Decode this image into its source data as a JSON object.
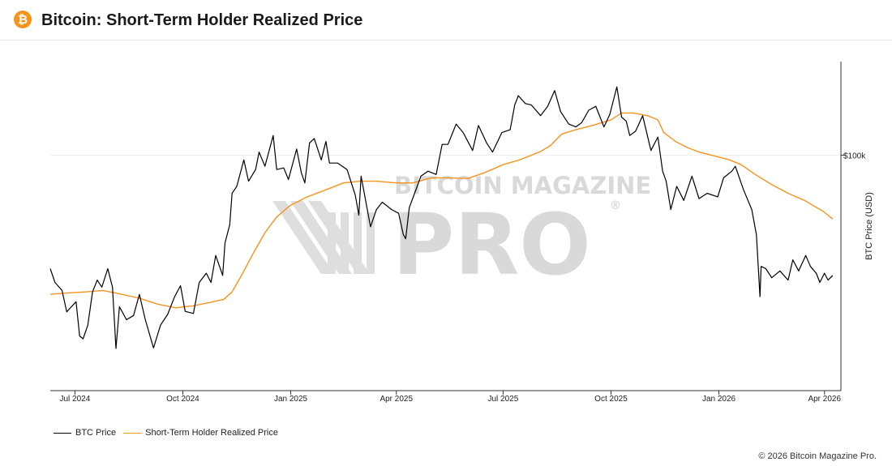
{
  "header": {
    "title": "Bitcoin: Short-Term Holder Realized Price",
    "logo_glyph": "₿"
  },
  "watermark": {
    "line1": "BITCOIN MAGAZINE",
    "line2": "PRO",
    "registered": "®"
  },
  "footer": {
    "copyright": "© 2026 Bitcoin Magazine Pro."
  },
  "colors": {
    "btc_price": "#000000",
    "sth_realized_price": "#f7931a",
    "logo": "#f7931a"
  },
  "chart_data": {
    "type": "line",
    "title": "Bitcoin: Short-Term Holder Realized Price",
    "xlabel": "",
    "ylabel": "BTC Price (USD)",
    "y_scale": "log",
    "ylim": [
      47000,
      135000
    ],
    "xlim": [
      "2024-06-10",
      "2026-04-15"
    ],
    "grid": {
      "horizontal": true,
      "vertical": false
    },
    "legend_position": "bottom-left",
    "x_ticks": [
      {
        "date": "2024-07-01",
        "label": "Jul 2024"
      },
      {
        "date": "2024-10-01",
        "label": "Oct 2024"
      },
      {
        "date": "2025-01-01",
        "label": "Jan 2025"
      },
      {
        "date": "2025-04-01",
        "label": "Apr 2025"
      },
      {
        "date": "2025-07-01",
        "label": "Jul 2025"
      },
      {
        "date": "2025-10-01",
        "label": "Oct 2025"
      },
      {
        "date": "2026-01-01",
        "label": "Jan 2026"
      },
      {
        "date": "2026-04-01",
        "label": "Apr 2026"
      }
    ],
    "y_ticks": [
      {
        "value": 100000,
        "label": "$100k"
      }
    ],
    "series": [
      {
        "name": "BTC Price",
        "color": "#000000",
        "points": [
          [
            "2024-06-10",
            69500
          ],
          [
            "2024-06-14",
            66500
          ],
          [
            "2024-06-20",
            64800
          ],
          [
            "2024-06-24",
            60500
          ],
          [
            "2024-06-28",
            61500
          ],
          [
            "2024-07-02",
            62500
          ],
          [
            "2024-07-05",
            56000
          ],
          [
            "2024-07-08",
            55500
          ],
          [
            "2024-07-12",
            58000
          ],
          [
            "2024-07-16",
            64500
          ],
          [
            "2024-07-20",
            67000
          ],
          [
            "2024-07-24",
            65500
          ],
          [
            "2024-07-29",
            69500
          ],
          [
            "2024-08-02",
            65500
          ],
          [
            "2024-08-05",
            53800
          ],
          [
            "2024-08-08",
            61500
          ],
          [
            "2024-08-14",
            59000
          ],
          [
            "2024-08-20",
            59800
          ],
          [
            "2024-08-25",
            64000
          ],
          [
            "2024-08-30",
            59000
          ],
          [
            "2024-09-06",
            53900
          ],
          [
            "2024-09-12",
            58000
          ],
          [
            "2024-09-18",
            60000
          ],
          [
            "2024-09-24",
            63500
          ],
          [
            "2024-09-29",
            65800
          ],
          [
            "2024-10-03",
            60600
          ],
          [
            "2024-10-10",
            60200
          ],
          [
            "2024-10-15",
            66500
          ],
          [
            "2024-10-21",
            68500
          ],
          [
            "2024-10-25",
            66500
          ],
          [
            "2024-10-29",
            72500
          ],
          [
            "2024-11-04",
            68000
          ],
          [
            "2024-11-06",
            75500
          ],
          [
            "2024-11-10",
            80000
          ],
          [
            "2024-11-12",
            88500
          ],
          [
            "2024-11-16",
            90500
          ],
          [
            "2024-11-22",
            98500
          ],
          [
            "2024-11-26",
            92000
          ],
          [
            "2024-12-02",
            95500
          ],
          [
            "2024-12-05",
            101000
          ],
          [
            "2024-12-10",
            96500
          ],
          [
            "2024-12-17",
            106500
          ],
          [
            "2024-12-20",
            95500
          ],
          [
            "2024-12-26",
            96000
          ],
          [
            "2024-12-30",
            92500
          ],
          [
            "2025-01-06",
            102000
          ],
          [
            "2025-01-10",
            94500
          ],
          [
            "2025-01-13",
            91500
          ],
          [
            "2025-01-17",
            104000
          ],
          [
            "2025-01-21",
            105500
          ],
          [
            "2025-01-27",
            98500
          ],
          [
            "2025-01-31",
            104500
          ],
          [
            "2025-02-03",
            97500
          ],
          [
            "2025-02-10",
            97500
          ],
          [
            "2025-02-18",
            95500
          ],
          [
            "2025-02-25",
            88000
          ],
          [
            "2025-02-28",
            82500
          ],
          [
            "2025-03-02",
            93500
          ],
          [
            "2025-03-10",
            79500
          ],
          [
            "2025-03-15",
            84000
          ],
          [
            "2025-03-20",
            86000
          ],
          [
            "2025-03-28",
            84000
          ],
          [
            "2025-04-03",
            83000
          ],
          [
            "2025-04-07",
            77500
          ],
          [
            "2025-04-09",
            76500
          ],
          [
            "2025-04-12",
            84500
          ],
          [
            "2025-04-22",
            93500
          ],
          [
            "2025-04-28",
            95000
          ],
          [
            "2025-05-05",
            94000
          ],
          [
            "2025-05-10",
            103500
          ],
          [
            "2025-05-15",
            103500
          ],
          [
            "2025-05-22",
            110500
          ],
          [
            "2025-05-28",
            107500
          ],
          [
            "2025-06-05",
            101500
          ],
          [
            "2025-06-10",
            110000
          ],
          [
            "2025-06-17",
            104000
          ],
          [
            "2025-06-22",
            101000
          ],
          [
            "2025-06-30",
            107500
          ],
          [
            "2025-07-07",
            108500
          ],
          [
            "2025-07-11",
            117500
          ],
          [
            "2025-07-14",
            121000
          ],
          [
            "2025-07-20",
            118000
          ],
          [
            "2025-07-25",
            117500
          ],
          [
            "2025-08-02",
            113500
          ],
          [
            "2025-08-08",
            117000
          ],
          [
            "2025-08-14",
            123000
          ],
          [
            "2025-08-19",
            115000
          ],
          [
            "2025-08-26",
            110500
          ],
          [
            "2025-09-01",
            109500
          ],
          [
            "2025-09-06",
            111000
          ],
          [
            "2025-09-12",
            115500
          ],
          [
            "2025-09-18",
            117000
          ],
          [
            "2025-09-25",
            109500
          ],
          [
            "2025-09-30",
            114000
          ],
          [
            "2025-10-06",
            124500
          ],
          [
            "2025-10-10",
            113000
          ],
          [
            "2025-10-14",
            111500
          ],
          [
            "2025-10-17",
            106500
          ],
          [
            "2025-10-22",
            108000
          ],
          [
            "2025-10-28",
            113500
          ],
          [
            "2025-11-04",
            101500
          ],
          [
            "2025-11-10",
            106000
          ],
          [
            "2025-11-14",
            95000
          ],
          [
            "2025-11-17",
            92000
          ],
          [
            "2025-11-21",
            84000
          ],
          [
            "2025-11-26",
            90500
          ],
          [
            "2025-12-02",
            86500
          ],
          [
            "2025-12-09",
            93500
          ],
          [
            "2025-12-15",
            87000
          ],
          [
            "2025-12-22",
            88500
          ],
          [
            "2025-12-31",
            87500
          ],
          [
            "2026-01-05",
            93000
          ],
          [
            "2026-01-12",
            95000
          ],
          [
            "2026-01-15",
            96500
          ],
          [
            "2026-01-22",
            89500
          ],
          [
            "2026-01-29",
            84000
          ],
          [
            "2026-02-02",
            77500
          ],
          [
            "2026-02-05",
            63500
          ],
          [
            "2026-02-06",
            70000
          ],
          [
            "2026-02-10",
            69500
          ],
          [
            "2026-02-15",
            67500
          ],
          [
            "2026-02-22",
            69000
          ],
          [
            "2026-03-01",
            67000
          ],
          [
            "2026-03-05",
            71500
          ],
          [
            "2026-03-10",
            69000
          ],
          [
            "2026-03-16",
            72500
          ],
          [
            "2026-03-20",
            70000
          ],
          [
            "2026-03-25",
            68500
          ],
          [
            "2026-03-28",
            66500
          ],
          [
            "2026-04-01",
            68500
          ],
          [
            "2026-04-04",
            67000
          ],
          [
            "2026-04-08",
            68000
          ]
        ]
      },
      {
        "name": "Short-Term Holder Realized Price",
        "color": "#f7931a",
        "points": [
          [
            "2024-06-10",
            64000
          ],
          [
            "2024-06-25",
            64300
          ],
          [
            "2024-07-10",
            64500
          ],
          [
            "2024-07-25",
            64800
          ],
          [
            "2024-08-10",
            64000
          ],
          [
            "2024-08-25",
            63200
          ],
          [
            "2024-09-10",
            62000
          ],
          [
            "2024-09-25",
            61300
          ],
          [
            "2024-10-10",
            61700
          ],
          [
            "2024-10-25",
            62400
          ],
          [
            "2024-11-05",
            63000
          ],
          [
            "2024-11-12",
            64500
          ],
          [
            "2024-11-20",
            68000
          ],
          [
            "2024-11-30",
            73000
          ],
          [
            "2024-12-10",
            78000
          ],
          [
            "2024-12-20",
            82000
          ],
          [
            "2024-12-31",
            85000
          ],
          [
            "2025-01-15",
            87500
          ],
          [
            "2025-01-31",
            89500
          ],
          [
            "2025-02-15",
            91500
          ],
          [
            "2025-03-01",
            92000
          ],
          [
            "2025-03-15",
            92000
          ],
          [
            "2025-04-01",
            91500
          ],
          [
            "2025-04-15",
            91500
          ],
          [
            "2025-05-01",
            93000
          ],
          [
            "2025-05-15",
            93000
          ],
          [
            "2025-06-01",
            92800
          ],
          [
            "2025-06-15",
            94500
          ],
          [
            "2025-07-01",
            97000
          ],
          [
            "2025-07-15",
            98500
          ],
          [
            "2025-08-01",
            101000
          ],
          [
            "2025-08-10",
            103000
          ],
          [
            "2025-08-20",
            107000
          ],
          [
            "2025-09-01",
            108500
          ],
          [
            "2025-09-15",
            110000
          ],
          [
            "2025-10-01",
            112000
          ],
          [
            "2025-10-10",
            114500
          ],
          [
            "2025-10-20",
            114500
          ],
          [
            "2025-11-01",
            113500
          ],
          [
            "2025-11-10",
            112000
          ],
          [
            "2025-11-15",
            107500
          ],
          [
            "2025-11-25",
            104500
          ],
          [
            "2025-12-05",
            102500
          ],
          [
            "2025-12-15",
            101000
          ],
          [
            "2025-12-31",
            99500
          ],
          [
            "2026-01-10",
            98500
          ],
          [
            "2026-01-20",
            97000
          ],
          [
            "2026-02-01",
            94000
          ],
          [
            "2026-02-15",
            91000
          ],
          [
            "2026-03-01",
            88500
          ],
          [
            "2026-03-15",
            86500
          ],
          [
            "2026-03-31",
            83500
          ],
          [
            "2026-04-08",
            81500
          ]
        ]
      }
    ]
  }
}
